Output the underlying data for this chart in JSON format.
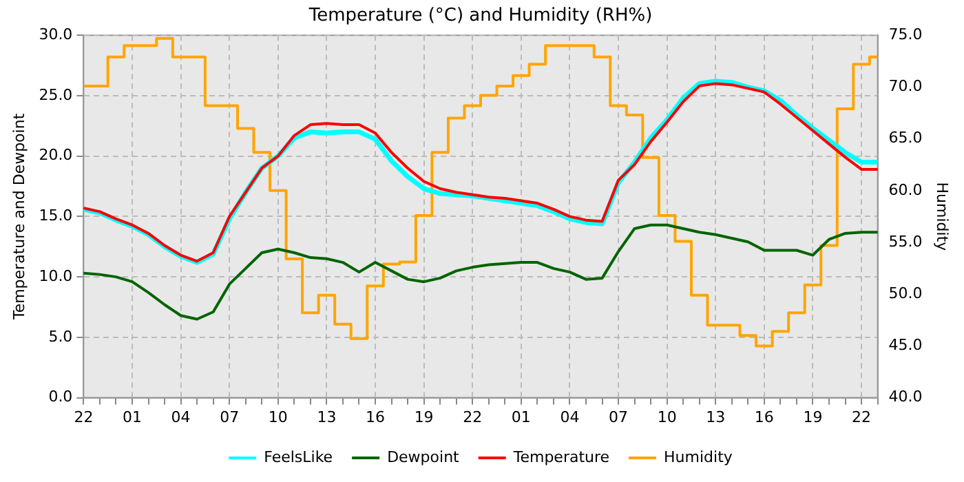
{
  "chart_data": {
    "type": "line",
    "title": "Temperature (°C) and Humidity (RH%)",
    "ylabel": "Temperature and Dewpoint",
    "y2label": "Humidity",
    "categories": [
      "22",
      null,
      null,
      "01",
      null,
      null,
      "04",
      null,
      null,
      "07",
      null,
      null,
      "10",
      null,
      null,
      "13",
      null,
      null,
      "16",
      null,
      null,
      "19",
      null,
      null,
      "22",
      null,
      null,
      "01",
      null,
      null,
      "04",
      null,
      null,
      "07",
      null,
      null,
      "10",
      null,
      null,
      "13",
      null,
      null,
      "16",
      null,
      null,
      "19",
      null,
      null,
      "22",
      null
    ],
    "series": [
      {
        "name": "FeelsLike",
        "color": "#00ffff",
        "values": [
          15.6,
          15.3,
          14.7,
          14.2,
          13.5,
          12.5,
          11.7,
          11.2,
          11.9,
          14.8,
          17.0,
          19.0,
          20.0,
          21.5,
          22.0,
          21.9,
          22.0,
          22.0,
          21.4,
          19.6,
          18.3,
          17.3,
          16.9,
          16.8,
          16.7,
          16.5,
          16.3,
          16.1,
          15.9,
          15.4,
          14.8,
          14.5,
          14.4,
          17.8,
          19.5,
          21.5,
          23.0,
          24.8,
          26.0,
          26.2,
          26.1,
          25.7,
          25.4,
          24.6,
          23.4,
          22.3,
          21.3,
          20.3,
          19.5,
          19.5
        ]
      },
      {
        "name": "Dewpoint",
        "color": "#006400",
        "values": [
          10.3,
          10.2,
          10.0,
          9.6,
          8.7,
          7.7,
          6.8,
          6.5,
          7.1,
          9.4,
          10.7,
          12.0,
          12.3,
          12.0,
          11.6,
          11.5,
          11.2,
          10.4,
          11.2,
          10.5,
          9.8,
          9.6,
          9.9,
          10.5,
          10.8,
          11.0,
          11.1,
          11.2,
          11.2,
          10.7,
          10.4,
          9.8,
          9.9,
          12.1,
          14.0,
          14.3,
          14.3,
          14.0,
          13.7,
          13.5,
          13.2,
          12.9,
          12.2,
          12.2,
          12.2,
          11.8,
          13.1,
          13.6,
          13.7,
          13.7
        ]
      },
      {
        "name": "Temperature",
        "color": "#ff0000",
        "values": [
          15.7,
          15.4,
          14.8,
          14.3,
          13.6,
          12.6,
          11.8,
          11.3,
          12.0,
          15.0,
          17.0,
          19.0,
          20.0,
          21.7,
          22.6,
          22.7,
          22.6,
          22.6,
          21.9,
          20.3,
          19.0,
          17.9,
          17.3,
          17.0,
          16.8,
          16.6,
          16.5,
          16.3,
          16.1,
          15.6,
          15.0,
          14.7,
          14.6,
          18.0,
          19.3,
          21.2,
          22.8,
          24.5,
          25.8,
          26.0,
          25.9,
          25.6,
          25.3,
          24.3,
          23.2,
          22.1,
          21.0,
          19.9,
          18.9,
          18.9
        ]
      },
      {
        "name": "Humidity",
        "type": "step",
        "axis": "y2",
        "color": "#ffa500",
        "values": [
          70.1,
          70.1,
          72.9,
          74.0,
          74.0,
          74.7,
          72.9,
          72.9,
          68.2,
          68.2,
          66.0,
          63.7,
          60.0,
          53.4,
          48.2,
          49.9,
          47.1,
          45.7,
          50.8,
          52.9,
          53.1,
          57.6,
          63.7,
          67.0,
          68.2,
          69.2,
          70.1,
          71.1,
          72.2,
          74.0,
          74.0,
          74.0,
          72.9,
          68.2,
          67.3,
          63.2,
          57.6,
          55.1,
          49.9,
          47.0,
          47.0,
          46.0,
          45.0,
          46.4,
          48.2,
          50.9,
          54.7,
          67.9,
          72.2,
          72.9
        ]
      }
    ],
    "ylim": [
      0,
      30
    ],
    "yticks": [
      {
        "value": 0,
        "label": "0.0"
      },
      {
        "value": 5,
        "label": "5.0"
      },
      {
        "value": 10,
        "label": "10.0"
      },
      {
        "value": 15,
        "label": "15.0"
      },
      {
        "value": 20,
        "label": "20.0"
      },
      {
        "value": 25,
        "label": "25.0"
      },
      {
        "value": 30,
        "label": "30.0"
      }
    ],
    "y2lim": [
      40,
      75
    ],
    "y2ticks": [
      {
        "value": 40,
        "label": "40.0"
      },
      {
        "value": 45,
        "label": "45.0"
      },
      {
        "value": 50,
        "label": "50.0"
      },
      {
        "value": 55,
        "label": "55.0"
      },
      {
        "value": 60,
        "label": "60.0"
      },
      {
        "value": 65,
        "label": "65.0"
      },
      {
        "value": 70,
        "label": "70.0"
      },
      {
        "value": 75,
        "label": "75.0"
      }
    ],
    "grid": true,
    "legend": "bottom",
    "marker": "none",
    "line_style": "solid"
  }
}
